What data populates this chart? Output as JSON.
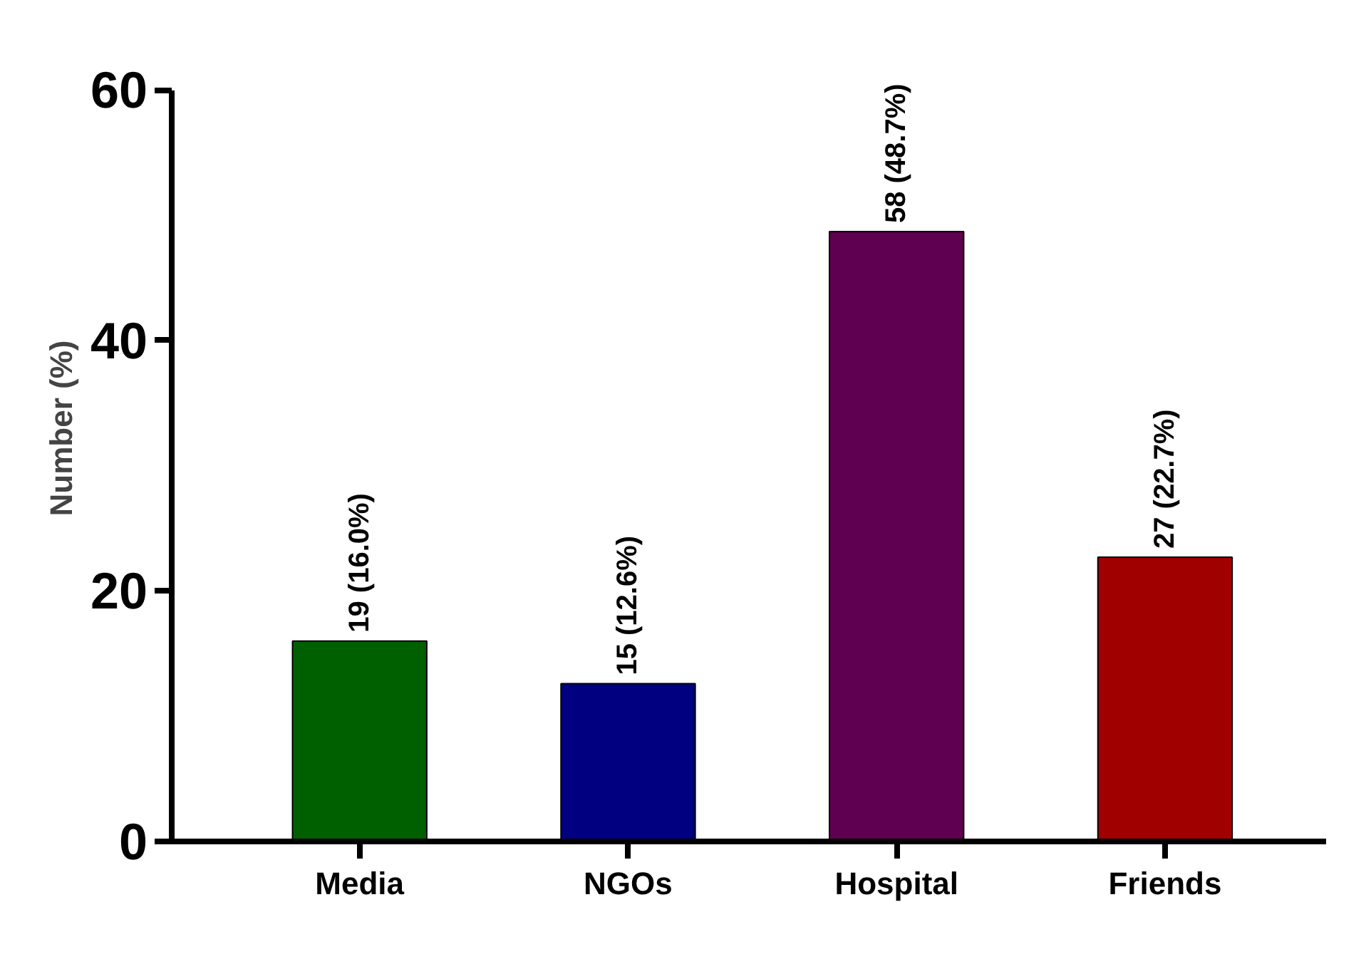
{
  "chart_data": {
    "type": "bar",
    "ylabel": "Number (%)",
    "categories": [
      "Media",
      "NGOs",
      "Hospital",
      "Friends"
    ],
    "values": [
      16.0,
      12.6,
      48.7,
      22.7
    ],
    "colors": [
      "#006000",
      "#000080",
      "#600050",
      "#a00000"
    ],
    "value_labels": [
      "19 (16.0%)",
      "15 (12.6%)",
      "58 (48.7%)",
      "27 (22.7%)"
    ],
    "ylim": [
      0,
      60
    ],
    "yticks": [
      0,
      20,
      40,
      60
    ],
    "grid": false
  }
}
